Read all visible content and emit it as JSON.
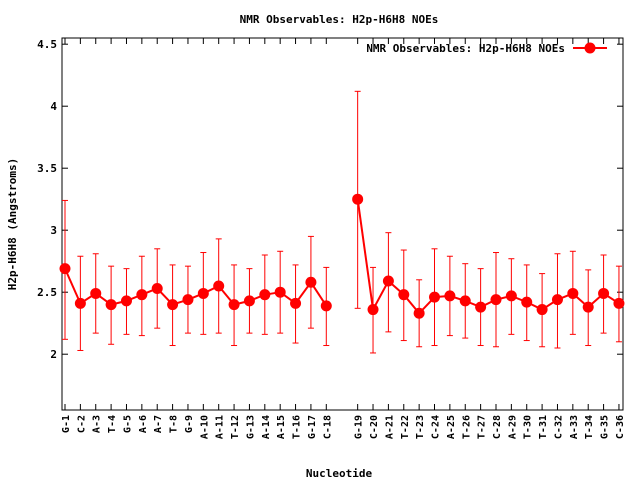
{
  "chart_data": {
    "type": "line",
    "title": "NMR Observables: H2p-H6H8 NOEs",
    "xlabel": "Nucleotide",
    "ylabel": "H2p-H6H8 (Angstroms)",
    "ylim": [
      1.55,
      4.55
    ],
    "yticks": [
      2,
      2.5,
      3,
      3.5,
      4,
      4.5
    ],
    "ytick_labels": [
      "2",
      "2.5",
      "3",
      "3.5",
      "4",
      "4.5"
    ],
    "grid": false,
    "legend_position": "top-right",
    "categories": [
      "G-1",
      "C-2",
      "A-3",
      "T-4",
      "G-5",
      "A-6",
      "A-7",
      "T-8",
      "G-9",
      "A-10",
      "A-11",
      "T-12",
      "G-13",
      "A-14",
      "A-15",
      "T-16",
      "G-17",
      "C-18",
      "G-19",
      "C-20",
      "A-21",
      "T-22",
      "T-23",
      "C-24",
      "A-25",
      "T-26",
      "T-27",
      "C-28",
      "A-29",
      "T-30",
      "T-31",
      "C-32",
      "A-33",
      "T-34",
      "G-35",
      "C-36"
    ],
    "series": [
      {
        "name": "NMR Observables: H2p-H6H8 NOEs",
        "color": "#ff0000",
        "values": [
          2.69,
          2.41,
          2.49,
          2.4,
          2.43,
          2.48,
          2.53,
          2.4,
          2.44,
          2.49,
          2.55,
          2.4,
          2.43,
          2.48,
          2.5,
          2.41,
          2.58,
          2.39,
          3.25,
          2.36,
          2.59,
          2.48,
          2.33,
          2.46,
          2.47,
          2.43,
          2.38,
          2.44,
          2.47,
          2.42,
          2.36,
          2.44,
          2.49,
          2.38,
          2.49,
          2.41
        ],
        "err_low": [
          2.12,
          2.03,
          2.17,
          2.08,
          2.16,
          2.15,
          2.21,
          2.07,
          2.17,
          2.16,
          2.17,
          2.07,
          2.17,
          2.16,
          2.17,
          2.09,
          2.21,
          2.07,
          2.37,
          2.01,
          2.18,
          2.11,
          2.06,
          2.07,
          2.15,
          2.13,
          2.07,
          2.06,
          2.16,
          2.11,
          2.06,
          2.05,
          2.16,
          2.07,
          2.17,
          2.1
        ],
        "err_high": [
          3.24,
          2.79,
          2.81,
          2.71,
          2.69,
          2.79,
          2.85,
          2.72,
          2.71,
          2.82,
          2.93,
          2.72,
          2.69,
          2.8,
          2.83,
          2.72,
          2.95,
          2.7,
          4.12,
          2.7,
          2.98,
          2.84,
          2.6,
          2.85,
          2.79,
          2.73,
          2.69,
          2.82,
          2.77,
          2.72,
          2.65,
          2.81,
          2.83,
          2.68,
          2.8,
          2.71
        ]
      }
    ],
    "gap_after_index": 17
  }
}
